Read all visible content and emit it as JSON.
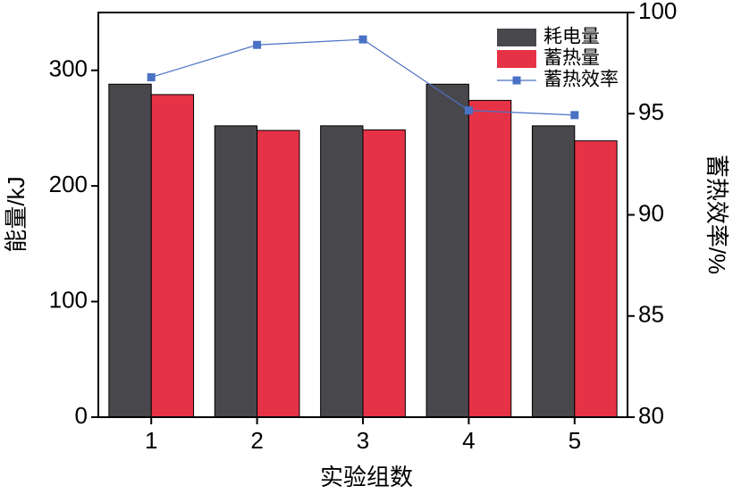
{
  "chart_data": {
    "type": "bar",
    "categories": [
      "1",
      "2",
      "3",
      "4",
      "5"
    ],
    "x_label": "实验组数",
    "y_label": "能量/kJ",
    "y2_label": "蓄热效率/%",
    "ylim": [
      0,
      350
    ],
    "yticks": [
      0,
      100,
      200,
      300
    ],
    "y2lim": [
      80,
      100
    ],
    "y2ticks": [
      80,
      85,
      90,
      95,
      100
    ],
    "legend": "upper right",
    "series": [
      {
        "name": "耗电量",
        "color": "#48484c",
        "values": [
          288,
          252,
          252,
          288,
          252
        ]
      },
      {
        "name": "蓄热量",
        "color": "#e63246",
        "values": [
          279,
          248,
          248.5,
          274,
          239
        ]
      },
      {
        "name": "蓄热效率",
        "color": "#4a72c4",
        "type": "line",
        "axis": "y2",
        "values": [
          96.8,
          98.4,
          98.67,
          95.16,
          94.93
        ]
      }
    ]
  }
}
